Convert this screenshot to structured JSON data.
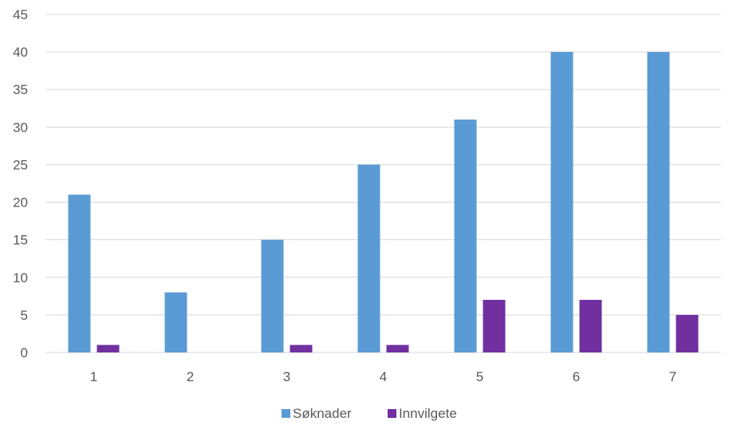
{
  "chart_data": {
    "type": "bar",
    "title": "",
    "xlabel": "",
    "ylabel": "",
    "categories": [
      "1",
      "2",
      "3",
      "4",
      "5",
      "6",
      "7"
    ],
    "series": [
      {
        "name": "Søknader",
        "values": [
          21,
          8,
          15,
          25,
          31,
          40,
          40
        ],
        "color": "#5b9bd5"
      },
      {
        "name": "Innvilgete",
        "values": [
          1,
          0,
          1,
          1,
          7,
          7,
          5
        ],
        "color": "#7030a0"
      }
    ],
    "ylim": [
      0,
      45
    ],
    "yticks": [
      0,
      5,
      10,
      15,
      20,
      25,
      30,
      35,
      40,
      45
    ],
    "grid": true,
    "legend": "bottom",
    "gridline_color": "#d9d9d9"
  }
}
